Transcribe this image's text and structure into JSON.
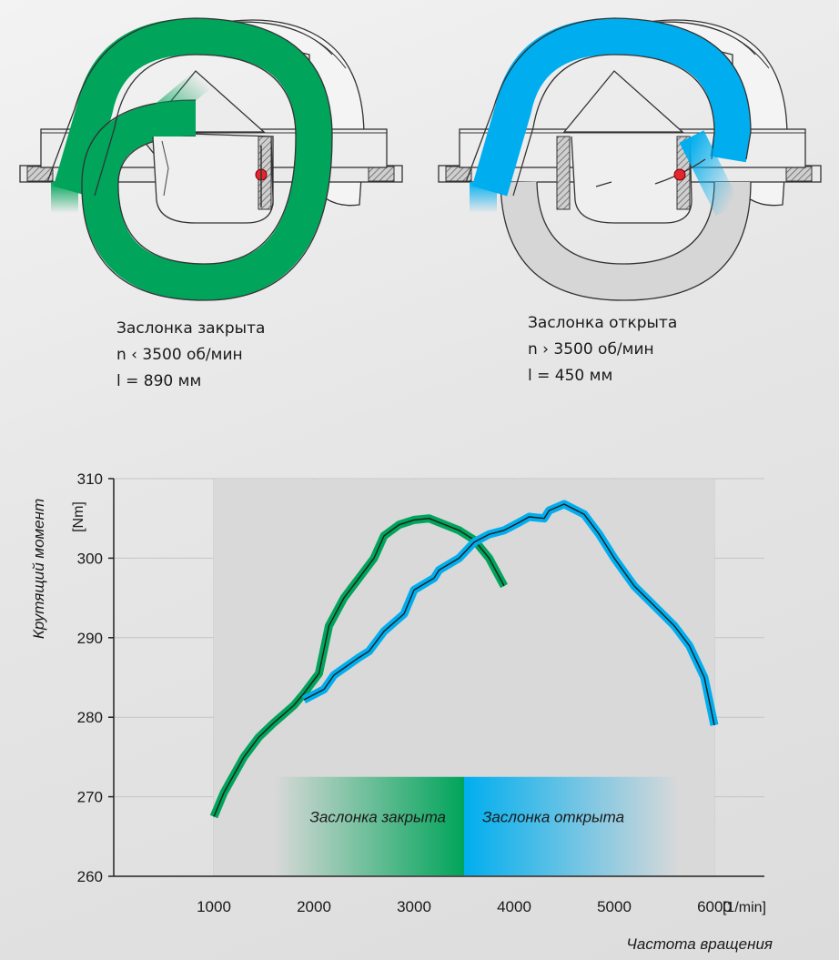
{
  "colors": {
    "closed": "#00a45a",
    "open": "#00aeef",
    "plot_bg": "#d9d9d9",
    "axis": "#222222",
    "flap": "#e3262f"
  },
  "intake_closed": {
    "icon": "intake-manifold-long-path-icon",
    "lines": [
      "Заслонка закрыта",
      "n ‹ 3500 об/мин",
      "l = 890 мм"
    ]
  },
  "intake_open": {
    "icon": "intake-manifold-short-path-icon",
    "lines": [
      "Заслонка открыта",
      "n › 3500 об/мин",
      "l = 450 мм"
    ]
  },
  "chart_data": {
    "type": "line",
    "title": "",
    "ylabel": "Крутящий момент",
    "yunit": "[Nm]",
    "xlabel": "Частота вращения",
    "xunit": "[1/min]",
    "xlim": [
      0,
      6500
    ],
    "ylim": [
      260,
      310
    ],
    "xticks": [
      "1000",
      "2000",
      "3000",
      "4000",
      "5000",
      "6000"
    ],
    "yticks": [
      "260",
      "270",
      "280",
      "290",
      "300",
      "310"
    ],
    "grid": true,
    "switch_rpm": 3500,
    "band_labels": [
      "Заслонка закрыта",
      "Заслонка открыта"
    ],
    "series": [
      {
        "key": "closed",
        "x": [
          1000,
          1100,
          1300,
          1450,
          1600,
          1800,
          1900,
          2050,
          2150,
          2300,
          2450,
          2600,
          2700,
          2850,
          3000,
          3150,
          3250,
          3450,
          3600,
          3750,
          3900
        ],
        "y": [
          267.5,
          270.5,
          275,
          277.5,
          279.3,
          281.5,
          283,
          285.5,
          291.5,
          295,
          297.5,
          300,
          302.8,
          304.2,
          304.8,
          305,
          304.5,
          303.5,
          302.3,
          300,
          296.5
        ]
      },
      {
        "key": "open",
        "x": [
          1900,
          2100,
          2200,
          2450,
          2550,
          2700,
          2900,
          3000,
          3200,
          3250,
          3450,
          3600,
          3750,
          3900,
          4050,
          4150,
          4300,
          4350,
          4500,
          4700,
          4850,
          5000,
          5200,
          5400,
          5600,
          5750,
          5900,
          6000
        ],
        "y": [
          282.2,
          283.5,
          285.3,
          287.5,
          288.3,
          290.8,
          293,
          296,
          297.5,
          298.5,
          300,
          302,
          303,
          303.5,
          304.5,
          305.2,
          305,
          306,
          306.8,
          305.5,
          303,
          300,
          296.5,
          294,
          291.5,
          289,
          285,
          279
        ]
      }
    ]
  }
}
